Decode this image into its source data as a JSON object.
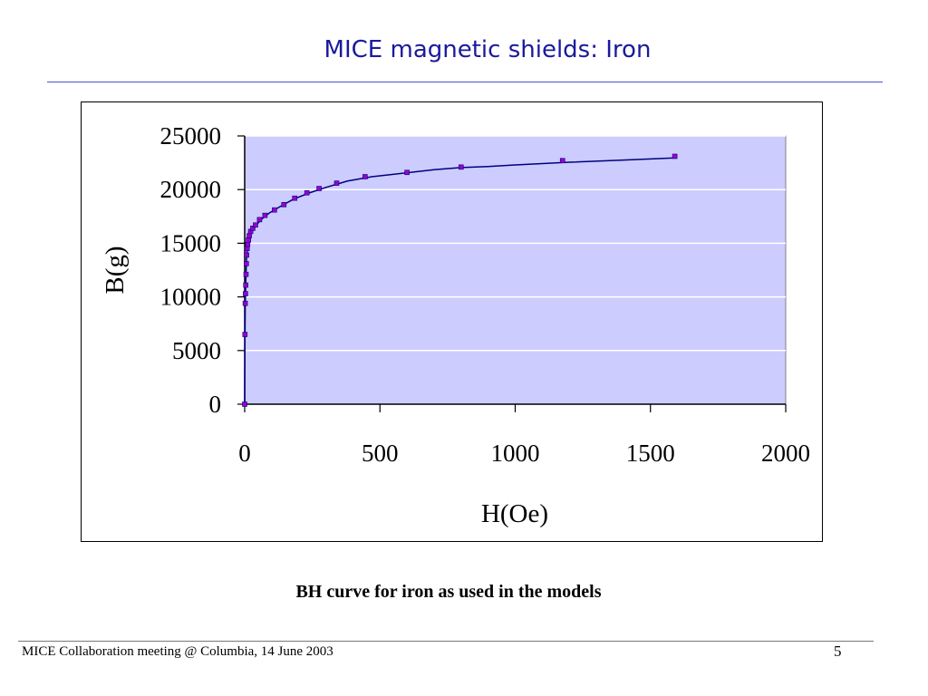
{
  "slide": {
    "title": "MICE magnetic shields: Iron",
    "caption": "BH curve for iron as used in the models",
    "footer": "MICE Collaboration meeting @ Columbia, 14 June 2003",
    "page_number": "5"
  },
  "colors": {
    "title": "#1a1a9c",
    "plot_background": "#ccccff",
    "curve": "#000080",
    "markers": "#9900cc"
  },
  "chart_data": {
    "type": "scatter",
    "title": "",
    "xlabel": "H(Oe)",
    "ylabel": "B(g)",
    "xlim": [
      0,
      2000
    ],
    "ylim": [
      0,
      25000
    ],
    "x_ticks": [
      0,
      500,
      1000,
      1500,
      2000
    ],
    "y_ticks": [
      0,
      5000,
      10000,
      15000,
      20000,
      25000
    ],
    "grid": "horizontal",
    "legend": "none",
    "series": [
      {
        "type": "scatter",
        "points": [
          [
            0,
            0
          ],
          [
            1,
            6500
          ],
          [
            2,
            9400
          ],
          [
            3,
            10300
          ],
          [
            4,
            11100
          ],
          [
            5,
            12100
          ],
          [
            6,
            13100
          ],
          [
            7,
            13900
          ],
          [
            9,
            14500
          ],
          [
            11,
            14900
          ],
          [
            14,
            15300
          ],
          [
            17,
            15700
          ],
          [
            22,
            16100
          ],
          [
            30,
            16400
          ],
          [
            40,
            16700
          ],
          [
            55,
            17200
          ],
          [
            75,
            17600
          ],
          [
            110,
            18100
          ],
          [
            145,
            18600
          ],
          [
            185,
            19200
          ],
          [
            230,
            19700
          ],
          [
            275,
            20100
          ],
          [
            340,
            20600
          ],
          [
            445,
            21200
          ],
          [
            600,
            21600
          ],
          [
            800,
            22100
          ],
          [
            1175,
            22700
          ],
          [
            1590,
            23100
          ]
        ]
      },
      {
        "type": "line",
        "points": [
          [
            0,
            0
          ],
          [
            1,
            6000
          ],
          [
            2,
            9000
          ],
          [
            3,
            10500
          ],
          [
            5,
            12200
          ],
          [
            7,
            13700
          ],
          [
            10,
            14600
          ],
          [
            15,
            15300
          ],
          [
            25,
            16000
          ],
          [
            40,
            16600
          ],
          [
            60,
            17200
          ],
          [
            90,
            17800
          ],
          [
            130,
            18400
          ],
          [
            180,
            19100
          ],
          [
            240,
            19700
          ],
          [
            300,
            20200
          ],
          [
            380,
            20800
          ],
          [
            470,
            21200
          ],
          [
            560,
            21450
          ],
          [
            700,
            21850
          ],
          [
            800,
            22050
          ],
          [
            900,
            22150
          ],
          [
            1000,
            22300
          ],
          [
            1200,
            22550
          ],
          [
            1400,
            22750
          ],
          [
            1590,
            22950
          ]
        ]
      }
    ]
  }
}
